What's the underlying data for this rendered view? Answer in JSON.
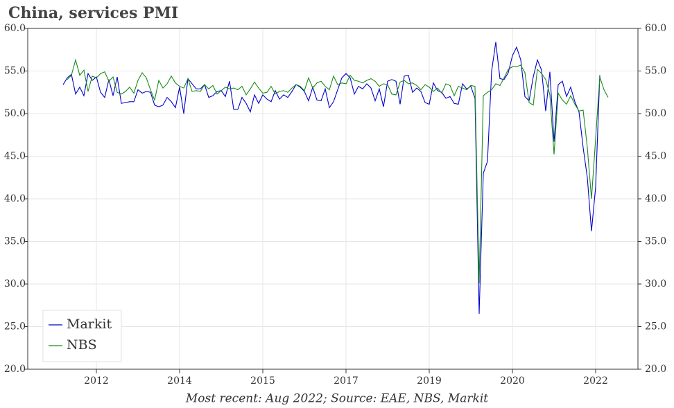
{
  "chart_data": {
    "type": "line",
    "title": "China, services PMI",
    "footnote": "Most recent: Aug 2022; Source: EAE, NBS, Markit",
    "categories": [
      null,
      null,
      null,
      null,
      null,
      null,
      null,
      null,
      "2012",
      null,
      null,
      null,
      null,
      null,
      null,
      null,
      null,
      null,
      null,
      null,
      null,
      null,
      null,
      null,
      null,
      null,
      null,
      null,
      "2014",
      null,
      null,
      null,
      null,
      null,
      null,
      null,
      null,
      null,
      null,
      null,
      null,
      null,
      null,
      null,
      null,
      null,
      null,
      null,
      "2015",
      null,
      null,
      null,
      null,
      null,
      null,
      null,
      null,
      null,
      null,
      null,
      null,
      null,
      null,
      null,
      null,
      null,
      null,
      null,
      "2017",
      null,
      null,
      null,
      null,
      null,
      null,
      null,
      null,
      null,
      null,
      null,
      null,
      null,
      null,
      null,
      null,
      null,
      null,
      null,
      "2019",
      null,
      null,
      null,
      null,
      null,
      null,
      null,
      null,
      null,
      null,
      null,
      null,
      null,
      null,
      null,
      null,
      null,
      null,
      null,
      "2020",
      null,
      null,
      null,
      null,
      null,
      null,
      null,
      null,
      null,
      null,
      null,
      null,
      null,
      null,
      null,
      null,
      null,
      null,
      null,
      "2022",
      null,
      null,
      null
    ],
    "series": [
      {
        "name": "Markit",
        "color": "#0000cc",
        "values": [
          53.4,
          54.2,
          54.6,
          52.3,
          53.1,
          52.1,
          54.7,
          53.9,
          54.3,
          52.5,
          51.9,
          54.0,
          52.1,
          54.3,
          51.2,
          51.3,
          51.4,
          51.4,
          52.8,
          52.4,
          52.6,
          52.5,
          51.0,
          50.8,
          51.0,
          51.9,
          51.4,
          50.7,
          53.1,
          50.0,
          54.1,
          53.5,
          52.9,
          52.9,
          53.4,
          51.9,
          52.1,
          52.6,
          52.7,
          52.0,
          53.8,
          50.5,
          50.5,
          51.9,
          51.2,
          50.2,
          52.2,
          51.2,
          52.2,
          51.7,
          51.4,
          52.7,
          51.7,
          52.2,
          51.9,
          52.6,
          53.4,
          53.1,
          52.6,
          51.5,
          53.1,
          51.6,
          51.5,
          52.9,
          50.7,
          51.4,
          52.8,
          54.2,
          54.7,
          54.2,
          52.3,
          53.2,
          52.9,
          53.5,
          53.0,
          51.5,
          52.9,
          50.8,
          53.8,
          54.0,
          53.8,
          51.1,
          54.4,
          54.5,
          52.5,
          53.0,
          52.6,
          51.3,
          51.1,
          53.6,
          52.7,
          52.5,
          51.8,
          52.0,
          51.2,
          51.1,
          53.5,
          52.9,
          53.2,
          51.8,
          26.5,
          43.0,
          44.4,
          55.0,
          58.4,
          54.1,
          54.0,
          54.8,
          56.8,
          57.8,
          56.3,
          52.0,
          51.5,
          54.3,
          56.3,
          55.1,
          50.3,
          54.9,
          46.7,
          53.4,
          53.8,
          52.0,
          53.1,
          51.4,
          50.2,
          46.0,
          42.5,
          36.2,
          41.4,
          54.5,
          null,
          null
        ]
      },
      {
        "name": "NBS",
        "color": "#1a8a1a",
        "values": [
          null,
          54.0,
          54.5,
          56.3,
          54.5,
          55.1,
          52.6,
          54.4,
          54.2,
          54.7,
          54.9,
          53.8,
          54.3,
          52.5,
          52.3,
          52.6,
          53.1,
          52.4,
          53.9,
          54.8,
          54.2,
          52.8,
          51.6,
          53.9,
          53.0,
          53.5,
          54.4,
          53.6,
          53.2,
          53.0,
          54.1,
          52.6,
          52.7,
          52.6,
          53.4,
          52.9,
          53.3,
          52.3,
          52.7,
          53.1,
          52.9,
          53.0,
          52.8,
          53.2,
          52.2,
          52.9,
          53.7,
          53.0,
          52.4,
          52.5,
          53.2,
          52.3,
          52.6,
          52.7,
          52.5,
          53.0,
          53.4,
          53.2,
          52.7,
          54.2,
          53.0,
          53.6,
          53.8,
          53.2,
          52.8,
          54.4,
          53.4,
          53.6,
          53.5,
          54.5,
          53.9,
          53.8,
          53.6,
          53.9,
          54.1,
          53.8,
          53.2,
          53.5,
          53.4,
          52.3,
          52.2,
          53.7,
          53.9,
          53.5,
          53.6,
          53.3,
          52.8,
          53.4,
          53.1,
          52.6,
          53.0,
          52.4,
          53.5,
          53.3,
          52.1,
          53.2,
          53.0,
          52.8,
          53.3,
          53.2,
          30.1,
          52.1,
          52.5,
          52.8,
          53.5,
          53.3,
          54.2,
          55.2,
          55.5,
          55.5,
          55.7,
          54.8,
          51.3,
          51.0,
          55.2,
          54.7,
          54.0,
          52.2,
          45.2,
          52.4,
          51.6,
          51.1,
          52.1,
          51.1,
          50.3,
          50.4,
          46.0,
          40.0,
          47.1,
          54.3,
          52.8,
          51.9
        ]
      }
    ],
    "ylim": [
      20,
      60
    ],
    "yticks": [
      {
        "value": 20,
        "label": "20.0"
      },
      {
        "value": 25,
        "label": "25.0"
      },
      {
        "value": 30,
        "label": "30.0"
      },
      {
        "value": 35,
        "label": "35.0"
      },
      {
        "value": 40,
        "label": "40.0"
      },
      {
        "value": 45,
        "label": "45.0"
      },
      {
        "value": 50,
        "label": "50.0"
      },
      {
        "value": 55,
        "label": "55.0"
      },
      {
        "value": 60,
        "label": "60.0"
      }
    ],
    "y2lim": [
      20,
      60
    ],
    "y2ticks": [
      {
        "value": 20,
        "label": "20.0"
      },
      {
        "value": 25,
        "label": "25.0"
      },
      {
        "value": 30,
        "label": "30.0"
      },
      {
        "value": 35,
        "label": "35.0"
      },
      {
        "value": 40,
        "label": "40.0"
      },
      {
        "value": 45,
        "label": "45.0"
      },
      {
        "value": 50,
        "label": "50.0"
      },
      {
        "value": 55,
        "label": "55.0"
      },
      {
        "value": 60,
        "label": "60.0"
      }
    ],
    "grid": true,
    "legend": "lower left"
  }
}
